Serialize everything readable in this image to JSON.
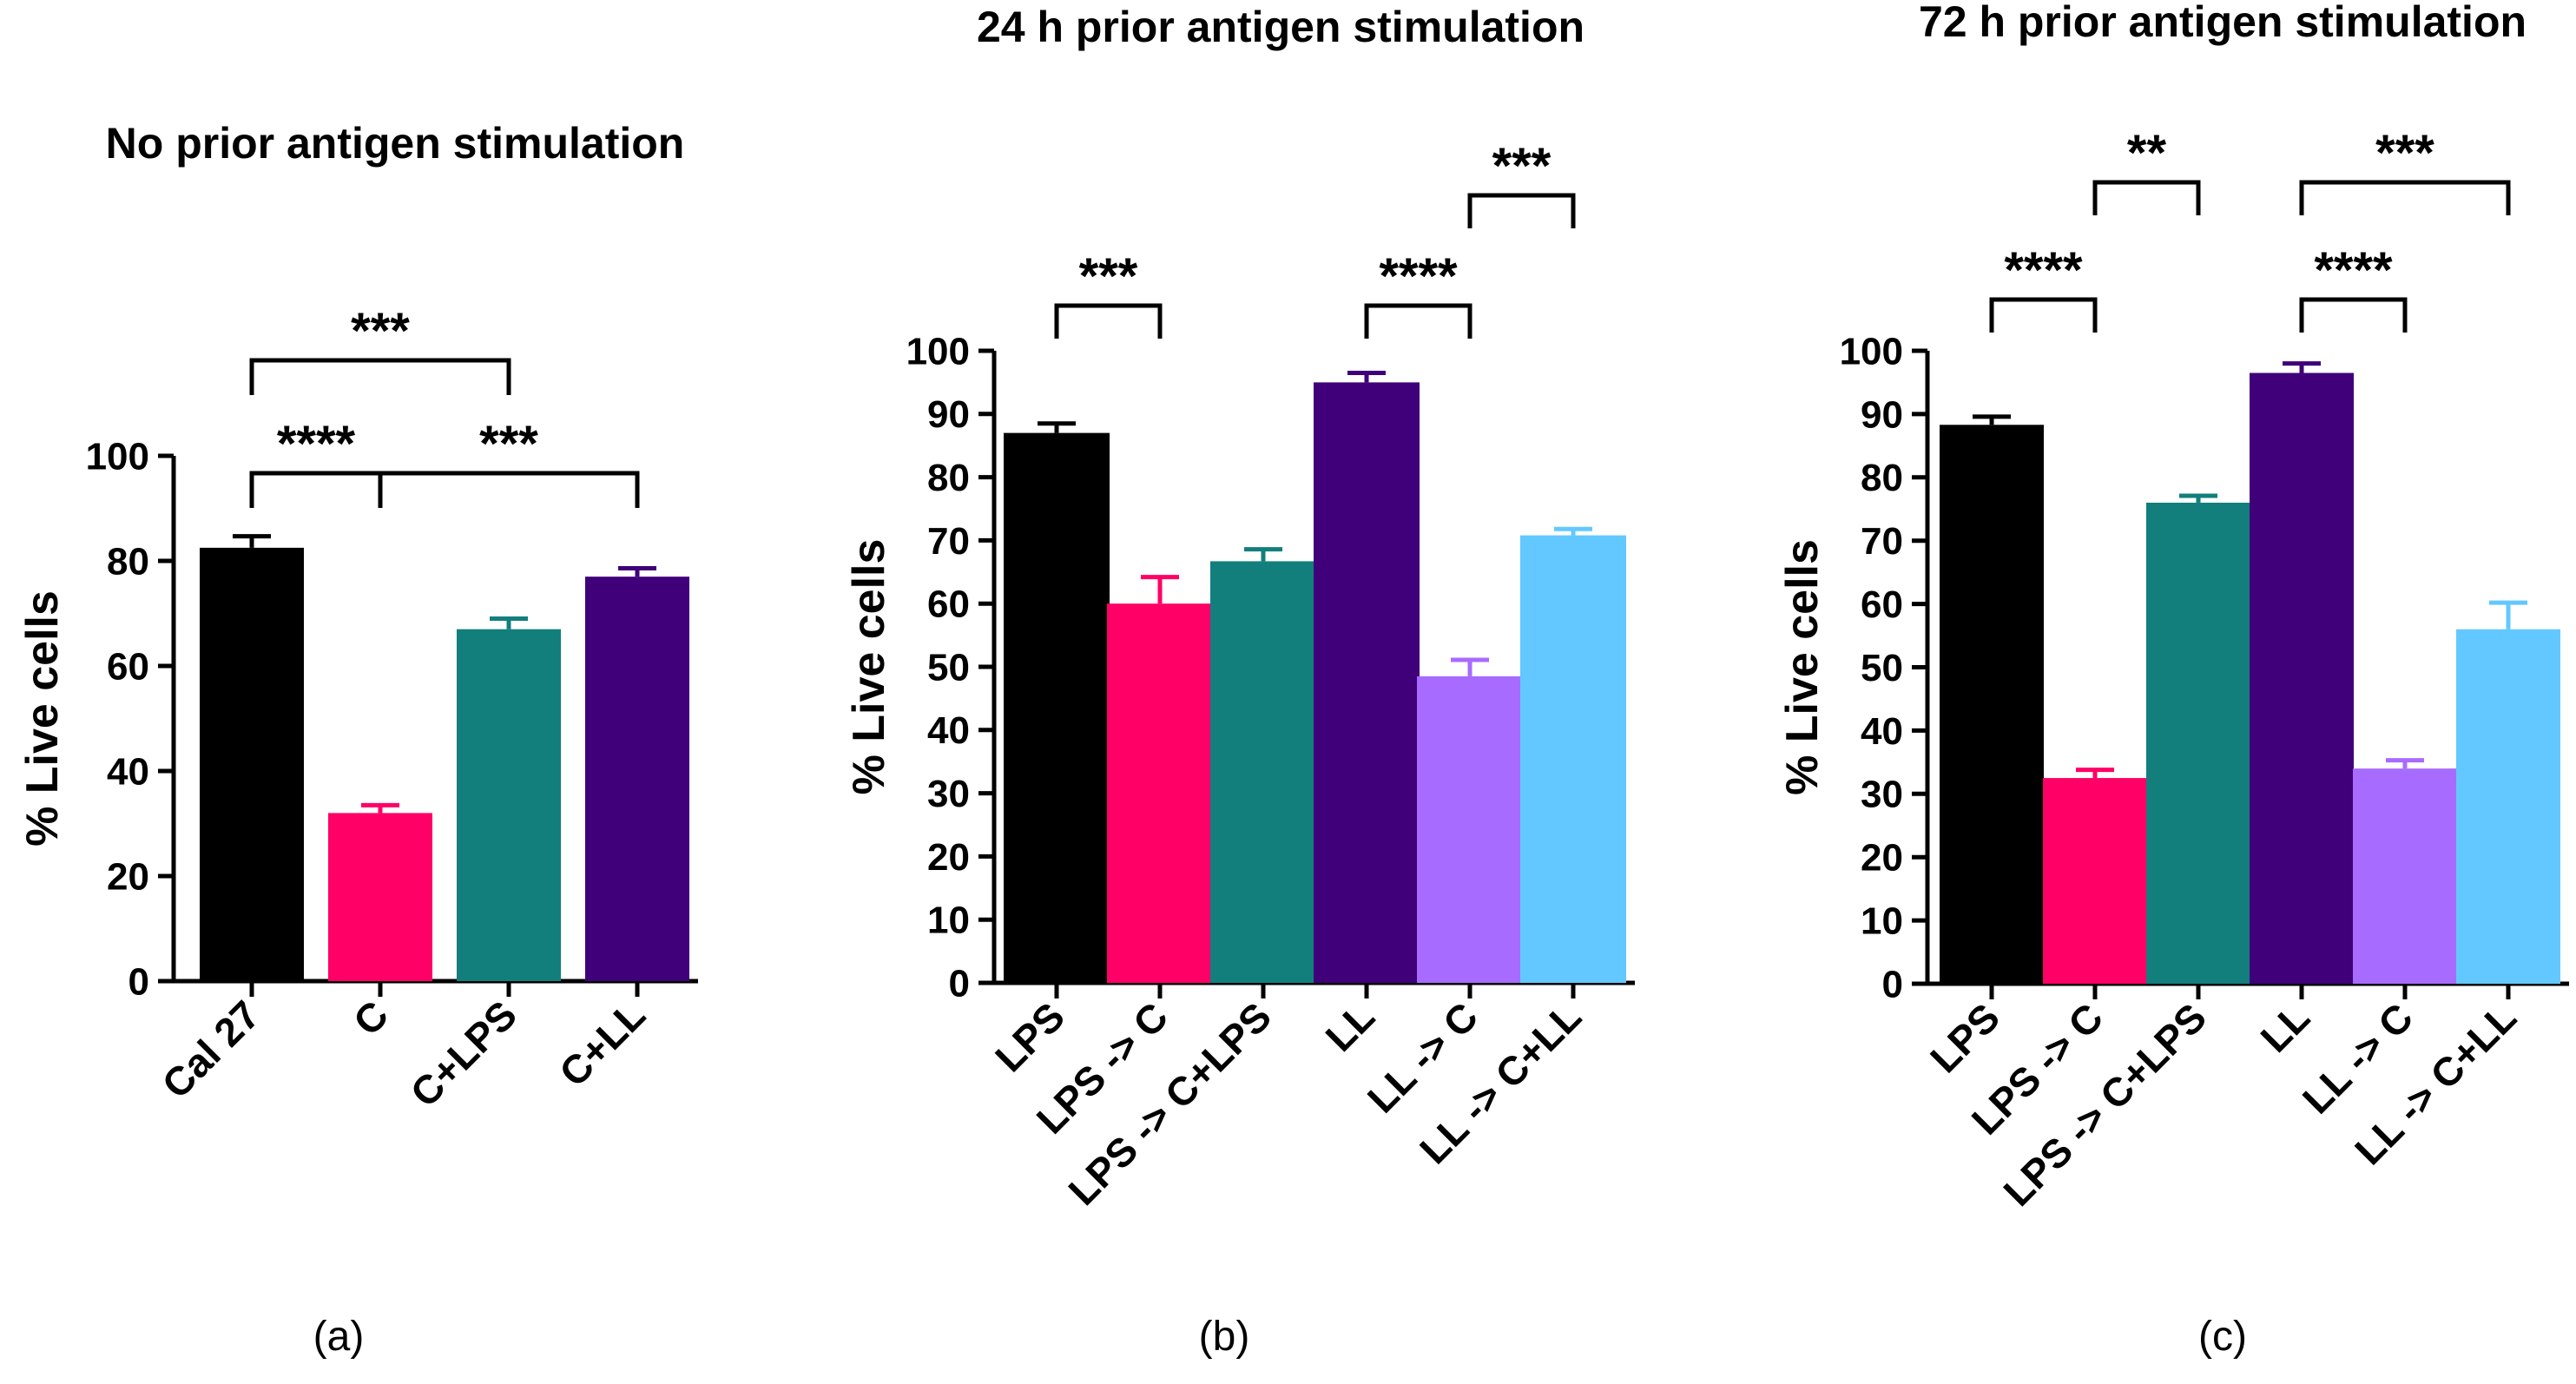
{
  "chart_data": [
    {
      "type": "bar",
      "panel_label": "(a)",
      "title": "No prior antigen stimulation",
      "ylabel": "% Live cells",
      "xlabel": "",
      "ylim": [
        0,
        100
      ],
      "yticks": [
        0,
        20,
        40,
        60,
        80,
        100
      ],
      "categories": [
        "Cal 27",
        "C",
        "C+LPS",
        "C+LL"
      ],
      "values": [
        82.5,
        32,
        67,
        77
      ],
      "errors": [
        2.2,
        1.5,
        2,
        1.6
      ],
      "colors": [
        "#000000",
        "#ff0066",
        "#127f7d",
        "#3f0079"
      ],
      "significance": [
        {
          "from": 0,
          "to": 1,
          "label": "****"
        },
        {
          "from": 1,
          "to": 3,
          "label": "***"
        },
        {
          "from": 0,
          "to": 2,
          "label": "***"
        }
      ]
    },
    {
      "type": "bar",
      "panel_label": "(b)",
      "title": "24 h prior antigen stimulation",
      "ylabel": "% Live cells",
      "xlabel": "",
      "ylim": [
        0,
        100
      ],
      "yticks": [
        0,
        10,
        20,
        30,
        40,
        50,
        60,
        70,
        80,
        90,
        100
      ],
      "categories": [
        "LPS",
        "LPS -> C",
        "LPS -> C+LPS",
        "LL",
        "LL -> C",
        "LL -> C+LL"
      ],
      "values": [
        87,
        60,
        66.7,
        95,
        48.5,
        70.8
      ],
      "errors": [
        1.5,
        4.2,
        1.9,
        1.5,
        2.6,
        1.0
      ],
      "colors": [
        "#000000",
        "#ff0066",
        "#127f7d",
        "#3f0079",
        "#a86bff",
        "#63c8ff"
      ],
      "significance": [
        {
          "from": 0,
          "to": 1,
          "label": "***"
        },
        {
          "from": 3,
          "to": 4,
          "label": "****"
        },
        {
          "from": 4,
          "to": 5,
          "label": "***"
        }
      ]
    },
    {
      "type": "bar",
      "panel_label": "(c)",
      "title": "72 h prior antigen stimulation",
      "ylabel": "% Live cells",
      "xlabel": "",
      "ylim": [
        0,
        100
      ],
      "yticks": [
        0,
        10,
        20,
        30,
        40,
        50,
        60,
        70,
        80,
        90,
        100
      ],
      "categories": [
        "LPS",
        "LPS -> C",
        "LPS -> C+LPS",
        "LL",
        "LL -> C",
        "LL -> C+LL"
      ],
      "values": [
        88.3,
        32.5,
        76,
        96.5,
        34,
        56
      ],
      "errors": [
        1.3,
        1.3,
        1.1,
        1.5,
        1.3,
        4.2
      ],
      "colors": [
        "#000000",
        "#ff0066",
        "#127f7d",
        "#3f0079",
        "#a86bff",
        "#63c8ff"
      ],
      "significance": [
        {
          "from": 0,
          "to": 1,
          "label": "****"
        },
        {
          "from": 1,
          "to": 2,
          "label": "**"
        },
        {
          "from": 3,
          "to": 4,
          "label": "****"
        },
        {
          "from": 3,
          "to": 5,
          "label": "***"
        }
      ]
    }
  ]
}
